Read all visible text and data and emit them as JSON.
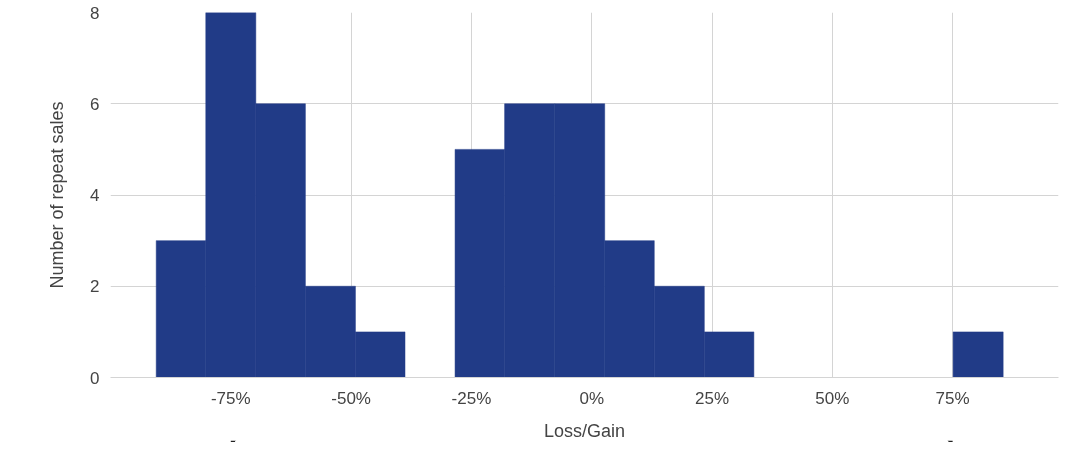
{
  "chart_data": {
    "type": "histogram",
    "xlabel": "Loss/Gain",
    "ylabel": "Number of repeat sales",
    "color": "#213b87",
    "bins": [
      -90.5,
      -80.2,
      -69.8,
      -59.5,
      -49.1,
      -38.8,
      -28.4,
      -18.1,
      -7.7,
      2.7,
      13,
      23.4,
      33.7,
      44.1,
      54.4,
      64.8,
      75.1,
      85.5
    ],
    "values": [
      3,
      8,
      6,
      2,
      1,
      0,
      5,
      6,
      6,
      3,
      2,
      1,
      0,
      0,
      0,
      0,
      1
    ],
    "xlim": [
      -100,
      97
    ],
    "ylim": [
      0,
      8
    ],
    "xticks": [
      {
        "value": -75,
        "label": "-75%"
      },
      {
        "value": -50,
        "label": "-50%"
      },
      {
        "value": -25,
        "label": "-25%"
      },
      {
        "value": 0,
        "label": "0%"
      },
      {
        "value": 25,
        "label": "25%"
      },
      {
        "value": 50,
        "label": "50%"
      },
      {
        "value": 75,
        "label": "75%"
      }
    ],
    "yticks": [
      0,
      2,
      4,
      6,
      8
    ],
    "grid": true
  }
}
